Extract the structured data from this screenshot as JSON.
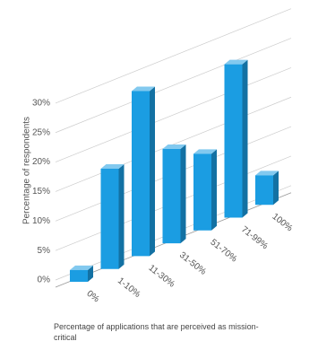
{
  "chart_data": {
    "type": "bar3d",
    "y_label": "Percentage of respondents",
    "x_label": "Percentage of applications that are perceived as mission-critical",
    "categories": [
      "0%",
      "1-10%",
      "11-30%",
      "31-50%",
      "51-70%",
      "71-99%",
      "100%"
    ],
    "values": [
      2,
      17,
      28,
      16,
      13,
      26,
      5
    ],
    "color": "#1b9de2",
    "ylim": [
      0,
      35
    ],
    "yticks": [
      {
        "value": 0,
        "label": "0%"
      },
      {
        "value": 5,
        "label": "5%"
      },
      {
        "value": 10,
        "label": "10%"
      },
      {
        "value": 15,
        "label": "15%"
      },
      {
        "value": 20,
        "label": "20%"
      },
      {
        "value": 25,
        "label": "25%"
      },
      {
        "value": 30,
        "label": "30%"
      }
    ],
    "grid": true
  }
}
